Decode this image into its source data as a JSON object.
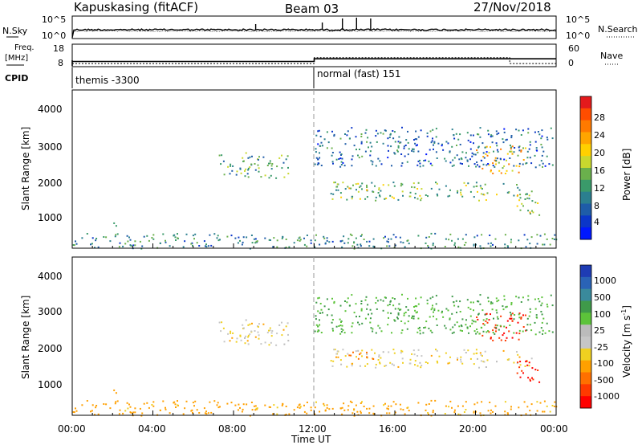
{
  "header": {
    "station": "Kapuskasing (fitACF)",
    "beam": "Beam 03",
    "date": "27/Nov/2018"
  },
  "panels": {
    "nsky_label": "N.Sky",
    "nsky_ticks": [
      "10^5",
      "10^0"
    ],
    "nsearch_label": "N.Search",
    "nsearch_ticks": [
      "10^5",
      "10^0"
    ],
    "freq_label": "Freq.",
    "freq_unit": "[MHz]",
    "freq_ticks": [
      "18",
      "8"
    ],
    "nave_label": "Nave",
    "nave_ticks": [
      "60",
      "0"
    ],
    "cpid_label": "CPID",
    "cpid_1": "themis -3300",
    "cpid_2": "normal (fast) 151"
  },
  "axes": {
    "ylabel": "Slant Range [km]",
    "yticks": [
      "4000",
      "3000",
      "2000",
      "1000"
    ],
    "xlabel": "Time UT",
    "xticks": [
      "00:00",
      "04:00",
      "08:00",
      "12:00",
      "16:00",
      "20:00",
      "00:00"
    ]
  },
  "colorbars": {
    "power_label": "Power [dB]",
    "power_ticks": [
      "28",
      "24",
      "20",
      "16",
      "12",
      "8",
      "4"
    ],
    "power_colors": [
      "#e41a1c",
      "#ff4d00",
      "#ff7a00",
      "#ffa500",
      "#ffd000",
      "#c9d82e",
      "#6ab04c",
      "#3a9a6a",
      "#2b7f8f",
      "#1e5ca8",
      "#0b36c9",
      "#0018ff"
    ],
    "velocity_label": "Velocity [m s",
    "velocity_label_sup": "-1",
    "velocity_label_end": "]",
    "velocity_ticks": [
      "1000",
      "500",
      "100",
      "25",
      "-25",
      "-100",
      "-500",
      "-1000"
    ],
    "velocity_colors": [
      "#1e3cb4",
      "#2a63b6",
      "#3a8a9c",
      "#3f9a4a",
      "#5cc33a",
      "#bbbbbb",
      "#c6c6c6",
      "#f0d020",
      "#ffa000",
      "#ff7000",
      "#ff3a00",
      "#ff0000"
    ]
  },
  "chart_data": {
    "type": "heatmap",
    "x_range_hours": [
      0,
      24
    ],
    "y_range_km": [
      180,
      4500
    ],
    "cpid_change_hour": 12,
    "freq_mhz": [
      {
        "from": 0,
        "to": 12,
        "value": 10.5
      },
      {
        "from": 12,
        "to": 24,
        "value": 12
      }
    ],
    "nave": [
      {
        "from": 0,
        "to": 12,
        "value": 8
      },
      {
        "from": 12,
        "to": 21.7,
        "value": 28
      },
      {
        "from": 21.7,
        "to": 24,
        "value": 8
      }
    ],
    "scatter_regions": [
      {
        "t0": 7.1,
        "t1": 10.8,
        "r0": 2100,
        "r1": 2800,
        "power": 12,
        "velocity": 0
      },
      {
        "t0": 12.8,
        "t1": 22.8,
        "r0": 1500,
        "r1": 2000,
        "power": 14,
        "velocity": 0
      },
      {
        "t0": 13.5,
        "t1": 15.0,
        "r0": 1700,
        "r1": 1950,
        "power": 20,
        "velocity": -120
      },
      {
        "t0": 20.0,
        "t1": 22.5,
        "r0": 2200,
        "r1": 3000,
        "power": 20,
        "velocity": -500
      },
      {
        "t0": 22.0,
        "t1": 23.3,
        "r0": 1100,
        "r1": 1700,
        "power": 18,
        "velocity": -500
      },
      {
        "t0": 12.0,
        "t1": 23.8,
        "r0": 2400,
        "r1": 3500,
        "power": 8,
        "velocity": 100
      },
      {
        "t0": 0.0,
        "t1": 24.0,
        "r0": 180,
        "r1": 600,
        "power": 10,
        "velocity": -50
      },
      {
        "t0": 2.0,
        "t1": 2.4,
        "r0": 650,
        "r1": 900,
        "power": 8,
        "velocity": -100
      }
    ]
  }
}
